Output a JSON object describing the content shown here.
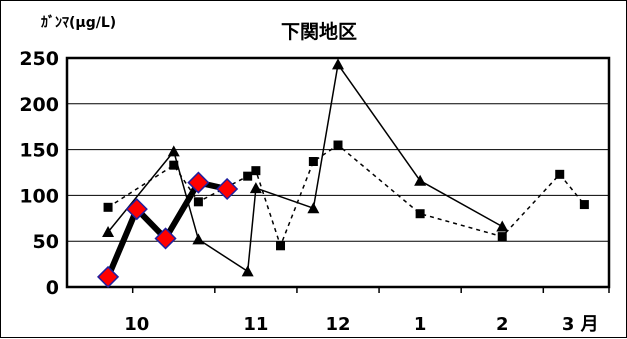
{
  "chart_data": {
    "type": "line",
    "title": "下関地区",
    "ylabel": "ｶﾞﾝﾏ(μg/L)",
    "xlabel": "",
    "ylim": [
      0,
      250
    ],
    "yticks": [
      "250",
      "200",
      "150",
      "100",
      "50",
      "0"
    ],
    "xtick_labels": [
      "10",
      "11",
      "12",
      "1",
      "2",
      "3 月"
    ],
    "grid": true,
    "legend": "none",
    "series": [
      {
        "style": "solid-triangle",
        "color": "#000000",
        "points": [
          [
            9.2,
            60
          ],
          [
            10.0,
            148
          ],
          [
            10.3,
            52
          ],
          [
            10.9,
            17
          ],
          [
            11.0,
            108
          ],
          [
            11.7,
            86
          ],
          [
            12.0,
            243
          ],
          [
            13.0,
            116
          ],
          [
            14.0,
            66
          ]
        ]
      },
      {
        "style": "dotted-square",
        "color": "#000000",
        "points": [
          [
            9.2,
            87
          ],
          [
            10.0,
            133
          ],
          [
            10.3,
            93
          ],
          [
            10.9,
            121
          ],
          [
            11.0,
            127
          ],
          [
            11.3,
            45
          ],
          [
            11.7,
            137
          ],
          [
            12.0,
            155
          ],
          [
            13.0,
            80
          ],
          [
            14.0,
            55
          ],
          [
            14.7,
            123
          ],
          [
            15.0,
            90
          ]
        ]
      },
      {
        "style": "thick-diamond",
        "color": "#000000",
        "marker_fill": "#ff0000",
        "marker_stroke": "#1f1f9f",
        "points": [
          [
            9.2,
            11
          ],
          [
            9.55,
            85
          ],
          [
            9.9,
            53
          ],
          [
            10.3,
            114
          ],
          [
            10.65,
            107
          ]
        ]
      }
    ]
  }
}
